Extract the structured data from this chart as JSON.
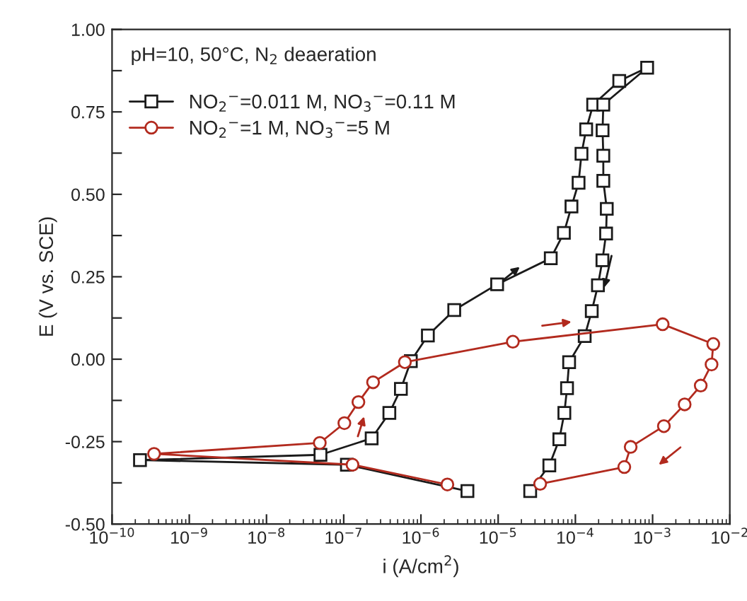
{
  "chart_data": {
    "type": "line",
    "xlabel": "i (A/cm$^{2}$)",
    "ylabel": "E (V vs. SCE)",
    "annotations": [
      "pH=10, 50°C, N$_{2}$ deaeration"
    ],
    "log": "x",
    "xlim": [
      1e-10,
      0.01
    ],
    "ylim": [
      -0.5,
      1.0
    ],
    "xticks": [
      {
        "value": 1e-10,
        "label": "10$^{−10}$"
      },
      {
        "value": 1e-09,
        "label": "10$^{−9}$"
      },
      {
        "value": 1e-08,
        "label": "10$^{−8}$"
      },
      {
        "value": 1e-07,
        "label": "10$^{−7}$"
      },
      {
        "value": 1e-06,
        "label": "10$^{−6}$"
      },
      {
        "value": 1e-05,
        "label": "10$^{−5}$"
      },
      {
        "value": 0.0001,
        "label": "10$^{−4}$"
      },
      {
        "value": 0.001,
        "label": "10$^{−3}$"
      },
      {
        "value": 0.01,
        "label": "10$^{−2}$"
      }
    ],
    "yticks": [
      {
        "value": -0.5,
        "label": "-0.50"
      },
      {
        "value": -0.375,
        "label": null
      },
      {
        "value": -0.25,
        "label": "-0.25"
      },
      {
        "value": -0.125,
        "label": null
      },
      {
        "value": 0,
        "label": "0.00"
      },
      {
        "value": 0.125,
        "label": null
      },
      {
        "value": 0.25,
        "label": "0.25"
      },
      {
        "value": 0.375,
        "label": null
      },
      {
        "value": 0.5,
        "label": "0.50"
      },
      {
        "value": 0.625,
        "label": null
      },
      {
        "value": 0.75,
        "label": "0.75"
      },
      {
        "value": 0.875,
        "label": null
      },
      {
        "value": 1.0,
        "label": "1.00"
      }
    ],
    "grid": false,
    "legend": "top left",
    "line_style": "solid",
    "series": [
      {
        "name": "NO$_{2}$$^{−}$=0.011 M, NO$_{3}$$^{−}$=0.11 M",
        "color": "#1a1a1a",
        "marker": "square",
        "x": [
          4e-06,
          1.1e-07,
          2.3e-10,
          5e-08,
          2.3e-07,
          3.9e-07,
          5.5e-07,
          7.4e-07,
          1.23e-06,
          2.7e-06,
          9.7e-06,
          4.8e-05,
          7.1e-05,
          8.9e-05,
          0.00011,
          0.00012,
          0.000138,
          0.00017,
          0.00037,
          0.00085,
          0.00023,
          0.000225,
          0.00023,
          0.00023,
          0.000255,
          0.00025,
          0.000224,
          0.000196,
          0.000163,
          0.000132,
          8.3e-05,
          7.8e-05,
          7.2e-05,
          6.2e-05,
          4.6e-05,
          2.6e-05
        ],
        "values": [
          -0.4,
          -0.32,
          -0.306,
          -0.29,
          -0.24,
          -0.163,
          -0.09,
          -0.006,
          0.072,
          0.149,
          0.227,
          0.306,
          0.383,
          0.463,
          0.535,
          0.623,
          0.697,
          0.772,
          0.844,
          0.884,
          0.772,
          0.694,
          0.617,
          0.541,
          0.456,
          0.381,
          0.3,
          0.224,
          0.146,
          0.07,
          -0.009,
          -0.088,
          -0.163,
          -0.243,
          -0.322,
          -0.4
        ]
      },
      {
        "name": "NO$_{2}$$^{−}$=1 M, NO$_{3}$$^{−}$=5 M",
        "color": "#b22a1e",
        "marker": "circle",
        "x": [
          2.2e-06,
          1.3e-07,
          3.5e-10,
          4.9e-08,
          1.02e-07,
          1.55e-07,
          2.4e-07,
          6.2e-07,
          1.55e-05,
          0.00135,
          0.0061,
          0.0058,
          0.0042,
          0.0026,
          0.0014,
          0.00052,
          0.00043,
          3.5e-05
        ],
        "values": [
          -0.38,
          -0.32,
          -0.287,
          -0.254,
          -0.194,
          -0.13,
          -0.07,
          -0.009,
          0.053,
          0.106,
          0.046,
          -0.016,
          -0.08,
          -0.137,
          -0.203,
          -0.266,
          -0.327,
          -0.378
        ]
      }
    ]
  }
}
